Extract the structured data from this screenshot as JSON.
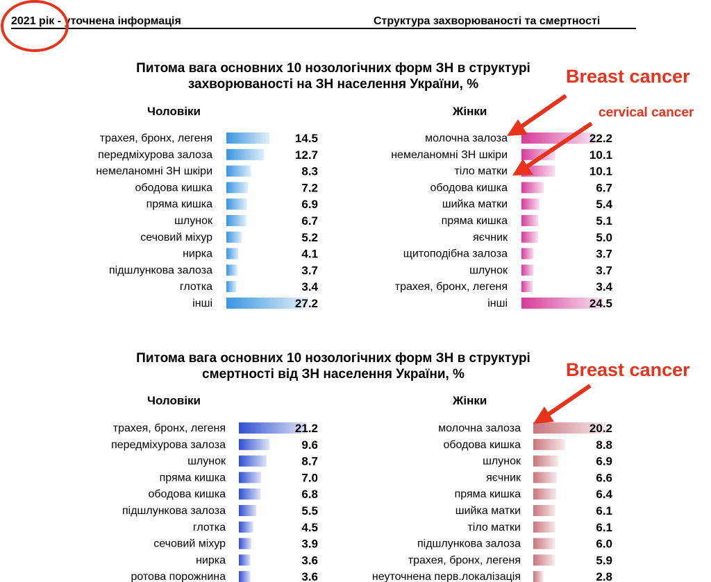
{
  "header": {
    "year": "2021 рік",
    "left_rest": " - уточнена інформація",
    "right": "Структура захворюваності та смертності"
  },
  "annotations": {
    "breast_cancer_top": "Breast cancer",
    "cervical_cancer": "cervical cancer",
    "breast_cancer_bottom": "Breast cancer"
  },
  "colors": {
    "annotation": "#e8331c",
    "incidence_men": "#3a95e0",
    "incidence_women": "#d63a98",
    "mortality_men": "#2f4fd0",
    "mortality_women": "#c9757d"
  },
  "chart_data": [
    {
      "type": "bar",
      "title": [
        "Питома вага основних 10 нозологічних форм ЗН в структурі",
        "захворюваності на ЗН населення України, %"
      ],
      "panels": [
        {
          "name": "Чоловіки",
          "categories": [
            "трахея, бронх, легеня",
            "передміхурова залоза",
            "немеланомні ЗН шкіри",
            "ободова кишка",
            "пряма кишка",
            "шлунок",
            "сечовий міхур",
            "нирка",
            "підшлункова залоза",
            "глотка",
            "інші"
          ],
          "values": [
            14.5,
            12.7,
            8.3,
            7.2,
            6.9,
            6.7,
            5.2,
            4.1,
            3.7,
            3.4,
            27.2
          ],
          "labels": [
            "14.5",
            "12.7",
            "8.3",
            "7.2",
            "6.9",
            "6.7",
            "5.2",
            "4.1",
            "3.7",
            "3.4",
            "27.2"
          ]
        },
        {
          "name": "Жінки",
          "categories": [
            "молочна залоза",
            "немеланомні ЗН шкіри",
            "тіло матки",
            "ободова кишка",
            "шийка матки",
            "пряма кишка",
            "яєчник",
            "щитоподібна залоза",
            "шлунок",
            "трахея, бронх, легеня",
            "інші"
          ],
          "values": [
            22.2,
            10.1,
            10.1,
            6.7,
            5.4,
            5.1,
            5.0,
            3.7,
            3.7,
            3.4,
            24.5
          ],
          "labels": [
            "22.2",
            "10.1",
            "10.1",
            "6.7",
            "5.4",
            "5.1",
            "5.0",
            "3.7",
            "3.7",
            "3.4",
            "24.5"
          ]
        }
      ]
    },
    {
      "type": "bar",
      "title": [
        "Питома вага основних 10 нозологічних форм ЗН в структурі",
        "смертності від ЗН населення України, %"
      ],
      "panels": [
        {
          "name": "Чоловіки",
          "categories": [
            "трахея, бронх, легеня",
            "передміхурова залоза",
            "шлунок",
            "пряма кишка",
            "ободова кишка",
            "підшлункова залоза",
            "глотка",
            "сечовий міхур",
            "нирка",
            "ротова порожнина"
          ],
          "values": [
            21.2,
            9.6,
            8.7,
            7.0,
            6.8,
            5.5,
            4.5,
            3.9,
            3.6,
            3.6
          ],
          "labels": [
            "21.2",
            "9.6",
            "8.7",
            "7.0",
            "6.8",
            "5.5",
            "4.5",
            "3.9",
            "3.6",
            "3.6"
          ]
        },
        {
          "name": "Жінки",
          "categories": [
            "молочна залоза",
            "ободова кишка",
            "шлунок",
            "яєчник",
            "пряма кишка",
            "шийка матки",
            "тіло матки",
            "підшлункова залоза",
            "трахея, бронх, легеня",
            "неуточнена перв.локалізація"
          ],
          "values": [
            20.2,
            8.8,
            6.9,
            6.6,
            6.4,
            6.1,
            6.1,
            6.0,
            5.9,
            2.8
          ],
          "labels": [
            "20.2",
            "8.8",
            "6.9",
            "6.6",
            "6.4",
            "6.1",
            "6.1",
            "6.0",
            "5.9",
            "2.8"
          ]
        }
      ]
    }
  ]
}
